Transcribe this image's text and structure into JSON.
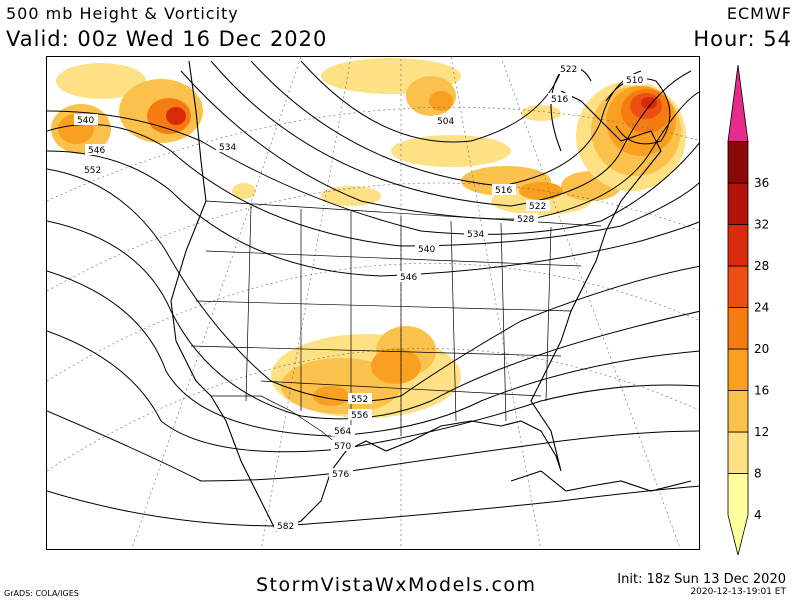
{
  "header": {
    "title": "500 mb Height & Vorticity",
    "valid": "Valid: 00z Wed 16 Dec 2020",
    "model": "ECMWF",
    "hour": "Hour: 54"
  },
  "footer": {
    "site": "StormVistaWxModels.com",
    "init": "Init: 18z Sun 13 Dec 2020",
    "timestamp": "2020-12-13-19:01 ET",
    "credit": "GrADS: COLA/IGES"
  },
  "map": {
    "height_contour_labels": [
      "504",
      "510",
      "516",
      "522",
      "528",
      "534",
      "540",
      "546",
      "552",
      "556",
      "564",
      "570",
      "576",
      "582"
    ],
    "vorticity_colors": [
      "#ffff9e",
      "#fde184",
      "#fbc14d",
      "#f9a020",
      "#f57c10",
      "#ee4e14",
      "#d92a0c",
      "#b31208",
      "#8c0806",
      "#b4125a",
      "#e62b8a"
    ]
  },
  "colorbar": {
    "levels": [
      "4",
      "8",
      "12",
      "16",
      "20",
      "24",
      "28",
      "32",
      "36"
    ],
    "colors": [
      "#ffff9e",
      "#fde184",
      "#fbc14d",
      "#f9a020",
      "#f57c10",
      "#ee4e14",
      "#d92a0c",
      "#b31208",
      "#8c0806",
      "#e62b8a"
    ]
  }
}
